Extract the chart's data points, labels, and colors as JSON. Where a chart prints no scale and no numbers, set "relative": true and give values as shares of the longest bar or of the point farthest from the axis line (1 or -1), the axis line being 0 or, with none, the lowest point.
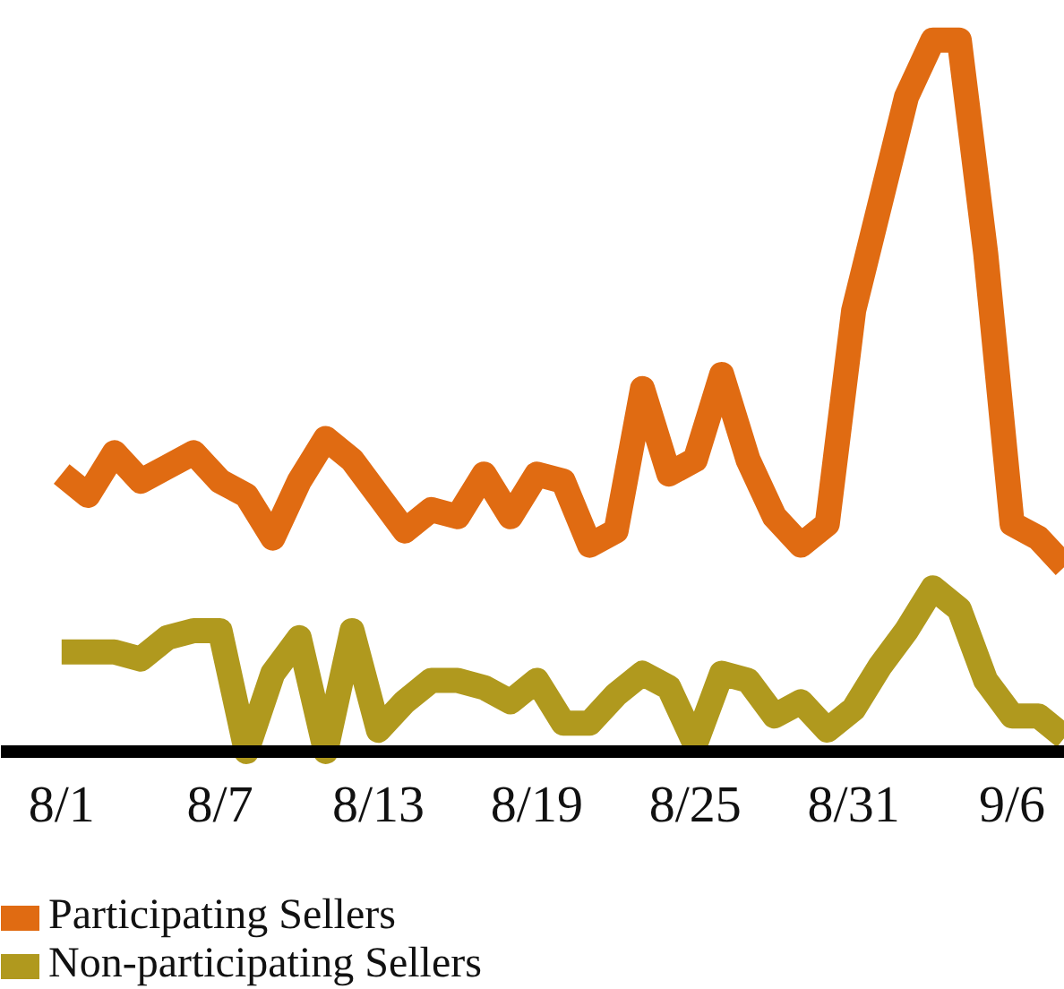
{
  "chart_data": {
    "type": "line",
    "relative": true,
    "legend": "bottom",
    "line_style": "solid",
    "categories": [
      "8/1",
      null,
      null,
      null,
      null,
      null,
      "8/7",
      null,
      null,
      null,
      null,
      null,
      "8/13",
      null,
      null,
      null,
      null,
      null,
      "8/19",
      null,
      null,
      null,
      null,
      null,
      "8/25",
      null,
      null,
      null,
      null,
      null,
      "8/31",
      null,
      null,
      null,
      null,
      null,
      "9/6",
      null,
      null
    ],
    "series": [
      {
        "name": "Participating Sellers",
        "color": "#e06b12",
        "values": [
          0.39,
          0.36,
          0.42,
          0.38,
          0.4,
          0.42,
          0.38,
          0.36,
          0.3,
          0.38,
          0.44,
          0.41,
          0.36,
          0.31,
          0.34,
          0.33,
          0.39,
          0.33,
          0.39,
          0.38,
          0.29,
          0.31,
          0.51,
          0.39,
          0.41,
          0.53,
          0.41,
          0.33,
          0.29,
          0.32,
          0.62,
          0.77,
          0.92,
          1,
          1,
          0.7,
          0.32,
          0.3,
          0.26
        ]
      },
      {
        "name": "Non-participating Sellers",
        "color": "#b0991e",
        "values": [
          0.14,
          0.14,
          0.14,
          0.13,
          0.16,
          0.17,
          0.17,
          0.0,
          0.11,
          0.16,
          0.0,
          0.17,
          0.03,
          0.07,
          0.1,
          0.1,
          0.09,
          0.07,
          0.1,
          0.04,
          0.04,
          0.08,
          0.11,
          0.09,
          0.01,
          0.11,
          0.1,
          0.05,
          0.07,
          0.03,
          0.06,
          0.12,
          0.17,
          0.23,
          0.2,
          0.1,
          0.05,
          0.05,
          0.02
        ]
      }
    ]
  }
}
